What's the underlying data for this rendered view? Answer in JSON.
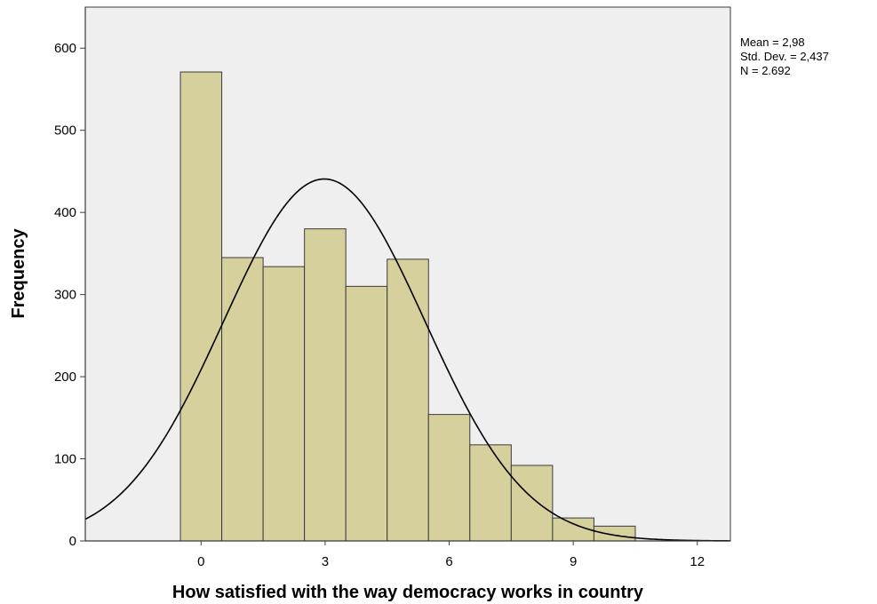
{
  "chart_data": {
    "type": "bar",
    "subtype": "histogram",
    "title": "",
    "xlabel": "How satisfied with the way democracy works in country",
    "ylabel": "Frequency",
    "bin_centers": [
      0,
      1,
      2,
      3,
      4,
      5,
      6,
      7,
      8,
      9,
      10
    ],
    "bin_width": 1,
    "values": [
      571,
      345,
      334,
      380,
      310,
      343,
      154,
      117,
      92,
      28,
      18
    ],
    "xlim": [
      -2.8,
      12.8
    ],
    "ylim": [
      0,
      650
    ],
    "xticks": [
      0,
      3,
      6,
      9,
      12
    ],
    "xtick_labels": [
      "0",
      "3",
      "6",
      "9",
      "12"
    ],
    "yticks": [
      0,
      100,
      200,
      300,
      400,
      500,
      600
    ],
    "ytick_labels": [
      "0",
      "100",
      "200",
      "300",
      "400",
      "500",
      "600"
    ],
    "normal_curve": {
      "mean": 2.98,
      "std_dev": 2.437,
      "n": 2692,
      "bin_width": 1
    },
    "stats_lines": [
      "Mean = 2,98",
      "Std. Dev. = 2,437",
      "N = 2.692"
    ],
    "legend_position": "top-right, outside plot",
    "grid": false,
    "colors": {
      "plot_background": "#efefef",
      "bar_fill": "#d6d09d",
      "bar_stroke": "#3b3b3b",
      "curve": "#000000",
      "axis": "#3b3b3b"
    }
  }
}
